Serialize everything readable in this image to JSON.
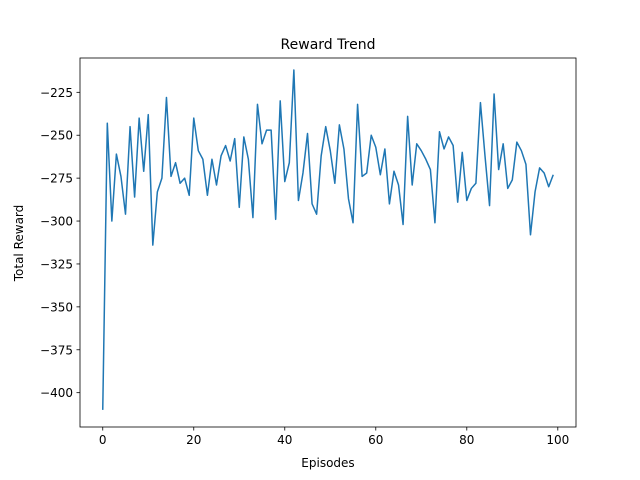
{
  "chart_data": {
    "type": "line",
    "title": "Reward Trend",
    "xlabel": "Episodes",
    "ylabel": "Total Reward",
    "xlim": [
      -5,
      104
    ],
    "ylim": [
      -420,
      -205
    ],
    "xticks": [
      0,
      20,
      40,
      60,
      80,
      100
    ],
    "yticks": [
      -400,
      -375,
      -350,
      -325,
      -300,
      -275,
      -250,
      -225
    ],
    "ytick_labels": [
      "−400",
      "−375",
      "−350",
      "−325",
      "−300",
      "−275",
      "−250",
      "−225"
    ],
    "grid": false,
    "line_color": "#1f77b4",
    "series": [
      {
        "x": [
          0,
          1,
          2,
          3,
          4,
          5,
          6,
          7,
          8,
          9,
          10,
          11,
          12,
          13,
          14,
          15,
          16,
          17,
          18,
          19,
          20,
          21,
          22,
          23,
          24,
          25,
          26,
          27,
          28,
          29,
          30,
          31,
          32,
          33,
          34,
          35,
          36,
          37,
          38,
          39,
          40,
          41,
          42,
          43,
          44,
          45,
          46,
          47,
          48,
          49,
          50,
          51,
          52,
          53,
          54,
          55,
          56,
          57,
          58,
          59,
          60,
          61,
          62,
          63,
          64,
          65,
          66,
          67,
          68,
          69,
          70,
          71,
          72,
          73,
          74,
          75,
          76,
          77,
          78,
          79,
          80,
          81,
          82,
          83,
          84,
          85,
          86,
          87,
          88,
          89,
          90,
          91,
          92,
          93,
          94,
          95,
          96,
          97,
          98,
          99
        ],
        "values": [
          -410,
          -243,
          -300,
          -261,
          -274,
          -296,
          -245,
          -286,
          -240,
          -271,
          -238,
          -314,
          -283,
          -275,
          -228,
          -274,
          -266,
          -278,
          -275,
          -285,
          -240,
          -259,
          -264,
          -285,
          -264,
          -279,
          -262,
          -256,
          -265,
          -252,
          -292,
          -251,
          -264,
          -298,
          -232,
          -255,
          -247,
          -247,
          -299,
          -230,
          -277,
          -266,
          -212,
          -288,
          -272,
          -249,
          -290,
          -296,
          -262,
          -245,
          -259,
          -278,
          -244,
          -258,
          -287,
          -301,
          -232,
          -274,
          -272,
          -250,
          -257,
          -273,
          -258,
          -290,
          -271,
          -279,
          -302,
          -239,
          -279,
          -255,
          -259,
          -264,
          -270,
          -301,
          -248,
          -258,
          -251,
          -256,
          -289,
          -260,
          -288,
          -281,
          -278,
          -231,
          -262,
          -291,
          -226,
          -270,
          -255,
          -281,
          -276,
          -254,
          -259,
          -267,
          -308,
          -283,
          -269,
          -272,
          -280,
          -273
        ]
      }
    ]
  }
}
